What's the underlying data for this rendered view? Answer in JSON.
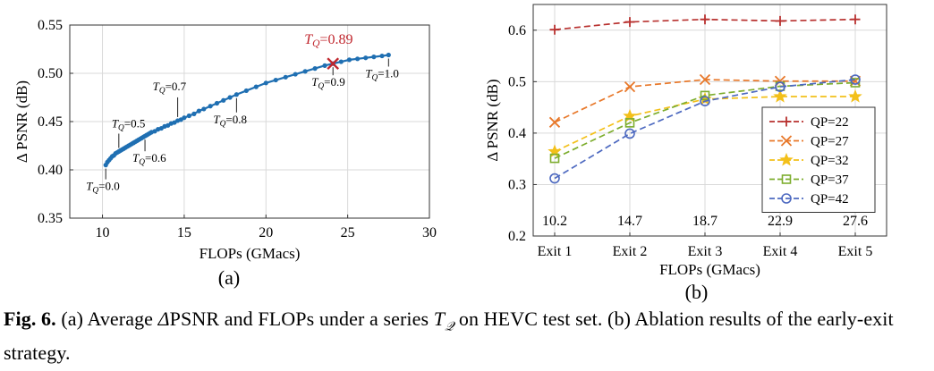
{
  "chart_data": [
    {
      "type": "line",
      "xlabel": "FLOPs (GMacs)",
      "ylabel": "Δ PSNR (dB)",
      "xlim": [
        8,
        30
      ],
      "ylim": [
        0.35,
        0.55
      ],
      "xticks": [
        10,
        15,
        20,
        25,
        30
      ],
      "yticks": [
        0.35,
        0.4,
        0.45,
        0.5,
        0.55
      ],
      "grid": true,
      "panel_label": "(a)",
      "color": "#1f6fb2",
      "x": [
        10.2,
        10.3,
        10.4,
        10.5,
        10.6,
        10.7,
        10.8,
        10.9,
        11.0,
        11.1,
        11.2,
        11.3,
        11.4,
        11.5,
        11.6,
        11.7,
        11.8,
        11.9,
        12.0,
        12.1,
        12.2,
        12.3,
        12.4,
        12.5,
        12.6,
        12.7,
        12.8,
        12.9,
        13.0,
        13.2,
        13.4,
        13.6,
        13.8,
        14.0,
        14.2,
        14.4,
        14.6,
        14.8,
        15.0,
        15.3,
        15.6,
        15.9,
        16.2,
        16.6,
        17.0,
        17.4,
        17.8,
        18.2,
        18.8,
        19.4,
        20.0,
        20.6,
        21.2,
        21.8,
        22.4,
        23.0,
        23.6,
        24.1,
        24.6,
        25.1,
        25.6,
        26.1,
        26.6,
        27.1,
        27.5
      ],
      "y": [
        0.405,
        0.408,
        0.41,
        0.412,
        0.414,
        0.415,
        0.417,
        0.418,
        0.419,
        0.42,
        0.421,
        0.422,
        0.423,
        0.424,
        0.425,
        0.426,
        0.427,
        0.428,
        0.429,
        0.43,
        0.431,
        0.432,
        0.433,
        0.434,
        0.435,
        0.436,
        0.437,
        0.438,
        0.439,
        0.44,
        0.442,
        0.443,
        0.445,
        0.446,
        0.448,
        0.449,
        0.451,
        0.452,
        0.454,
        0.456,
        0.458,
        0.461,
        0.463,
        0.466,
        0.469,
        0.472,
        0.475,
        0.478,
        0.482,
        0.486,
        0.49,
        0.493,
        0.496,
        0.499,
        0.502,
        0.505,
        0.508,
        0.51,
        0.512,
        0.514,
        0.515,
        0.516,
        0.517,
        0.518,
        0.519
      ],
      "annotations": [
        {
          "label": "T_Q=0.0",
          "x": 10.2,
          "y": 0.405
        },
        {
          "label": "T_Q=0.5",
          "x": 11.0,
          "y": 0.419
        },
        {
          "label": "T_Q=0.6",
          "x": 12.6,
          "y": 0.435
        },
        {
          "label": "T_Q=0.7",
          "x": 14.6,
          "y": 0.451
        },
        {
          "label": "T_Q=0.8",
          "x": 18.2,
          "y": 0.478
        },
        {
          "label": "T_Q=0.9",
          "x": 24.1,
          "y": 0.51
        },
        {
          "label": "T_Q=1.0",
          "x": 27.5,
          "y": 0.519
        }
      ],
      "highlight": {
        "label": "T_Q=0.89",
        "x": 24.1,
        "y": 0.51,
        "color": "#c0262d"
      }
    },
    {
      "type": "line",
      "xlabel": "FLOPs (GMacs)",
      "ylabel": "Δ PSNR (dB)",
      "categories": [
        "Exit 1",
        "Exit 2",
        "Exit 3",
        "Exit 4",
        "Exit 5"
      ],
      "flops_labels": [
        "10.2",
        "14.7",
        "18.7",
        "22.9",
        "27.6"
      ],
      "ylim": [
        0.2,
        0.65
      ],
      "yticks": [
        0.2,
        0.3,
        0.4,
        0.5,
        0.6
      ],
      "grid": true,
      "legend_position": "center-right",
      "panel_label": "(b)",
      "series": [
        {
          "name": "QP=22",
          "color": "#b8312f",
          "marker": "plus",
          "values": [
            0.601,
            0.616,
            0.621,
            0.618,
            0.621
          ]
        },
        {
          "name": "QP=27",
          "color": "#e8782a",
          "marker": "x",
          "values": [
            0.421,
            0.49,
            0.504,
            0.501,
            0.501
          ]
        },
        {
          "name": "QP=32",
          "color": "#f3c01a",
          "marker": "star",
          "values": [
            0.364,
            0.433,
            0.466,
            0.471,
            0.471
          ]
        },
        {
          "name": "QP=37",
          "color": "#7dad2e",
          "marker": "square",
          "values": [
            0.351,
            0.42,
            0.473,
            0.491,
            0.498
          ]
        },
        {
          "name": "QP=42",
          "color": "#4d69c0",
          "marker": "circle",
          "values": [
            0.312,
            0.399,
            0.462,
            0.49,
            0.504
          ]
        }
      ]
    }
  ],
  "caption": {
    "fig_label": "Fig. 6.",
    "part1": " (a) Average ",
    "part2": "PSNR and FLOPs under a series ",
    "part3": " on HEVC test set. (b) Ablation results of the early-exit strategy."
  }
}
